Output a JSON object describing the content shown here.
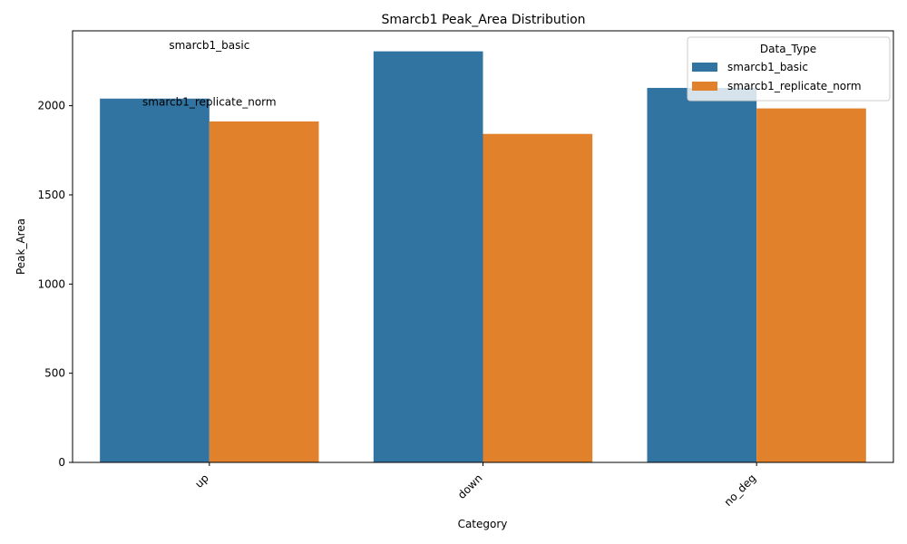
{
  "chart_data": {
    "type": "bar",
    "title": "Smarcb1 Peak_Area Distribution",
    "xlabel": "Category",
    "ylabel": "Peak_Area",
    "categories": [
      "up",
      "down",
      "no_deg"
    ],
    "series": [
      {
        "name": "smarcb1_basic",
        "values": [
          2040,
          2305,
          2100
        ],
        "color": "#3274a1"
      },
      {
        "name": "smarcb1_replicate_norm",
        "values": [
          1912,
          1842,
          1985
        ],
        "color": "#e1812c"
      }
    ],
    "ylim": [
      0,
      2420
    ],
    "yticks": [
      0,
      500,
      1000,
      1500,
      2000
    ],
    "grid": false,
    "legend": {
      "title": "Data_Type",
      "placement": "top-right"
    },
    "annotations": [
      {
        "text": "smarcb1_basic",
        "category": "up",
        "y": 2318
      },
      {
        "text": "smarcb1_replicate_norm",
        "category": "up",
        "y": 2000
      }
    ]
  }
}
